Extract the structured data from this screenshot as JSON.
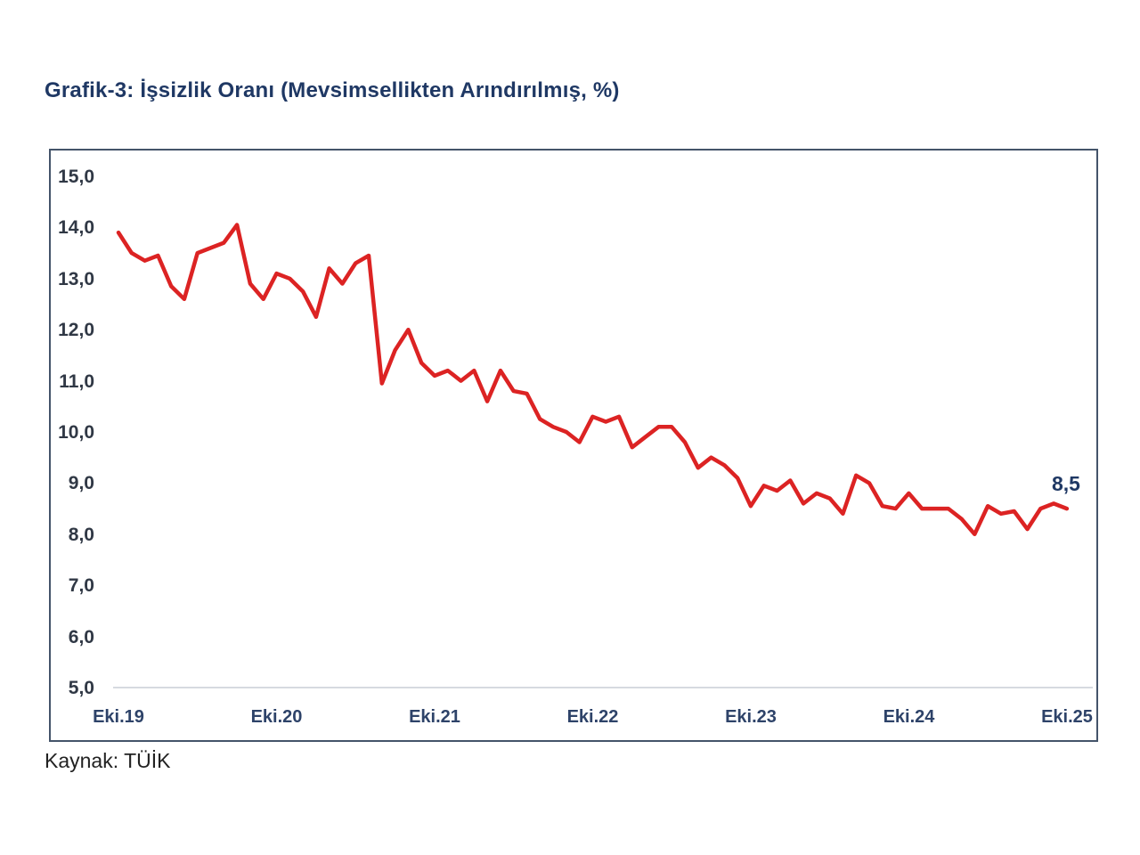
{
  "page": {
    "title": "Grafik-3: İşsizlik Oranı (Mevsimsellikten Arındırılmış, %)",
    "source": "Kaynak: TÜİK"
  },
  "colors": {
    "title": "#1f3864",
    "line": "#dc2323",
    "end_label": "#1f3864",
    "frame_border": "#44546a",
    "axis_line": "#c9ced6",
    "y_tick_text": "#303845",
    "x_tick_text": "#2e4369"
  },
  "chart_data": {
    "type": "line",
    "title": "Grafik-3: İşsizlik Oranı (Mevsimsellikten Arındırılmış, %)",
    "source": "Kaynak: TÜİK",
    "x_unit": "month",
    "x_start": "Eki.19",
    "x_end": "Eki.25",
    "x_tick_labels": [
      "Eki.19",
      "Eki.20",
      "Eki.21",
      "Eki.22",
      "Eki.23",
      "Eki.24",
      "Eki.25"
    ],
    "y_tick_labels": [
      "15,0",
      "14,0",
      "13,0",
      "12,0",
      "11,0",
      "10,0",
      "9,0",
      "8,0",
      "7,0",
      "6,0",
      "5,0"
    ],
    "ylim": [
      5.0,
      15.0
    ],
    "grid": false,
    "legend": "none",
    "end_label": "8,5",
    "last_value": 8.5,
    "series": [
      {
        "name": "İşsizlik Oranı (Mevsimsellikten Arındırılmış, %)",
        "values": [
          13.9,
          13.5,
          13.35,
          13.45,
          12.85,
          12.6,
          13.5,
          13.6,
          13.7,
          14.05,
          12.9,
          12.6,
          13.1,
          13.0,
          12.75,
          12.25,
          13.2,
          12.9,
          13.3,
          13.45,
          10.95,
          11.6,
          12.0,
          11.35,
          11.1,
          11.2,
          11.0,
          11.2,
          10.6,
          11.2,
          10.8,
          10.75,
          10.25,
          10.1,
          10.0,
          9.8,
          10.3,
          10.2,
          10.3,
          9.7,
          9.9,
          10.1,
          10.1,
          9.8,
          9.3,
          9.5,
          9.35,
          9.1,
          8.55,
          8.95,
          8.85,
          9.05,
          8.6,
          8.8,
          8.7,
          8.4,
          9.15,
          9.0,
          8.55,
          8.5,
          8.8,
          8.5,
          8.5,
          8.5,
          8.3,
          8.0,
          8.55,
          8.4,
          8.45,
          8.1,
          8.5,
          8.6,
          8.5
        ]
      }
    ]
  }
}
